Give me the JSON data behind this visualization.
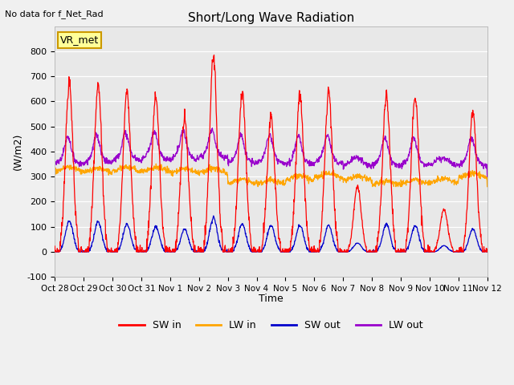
{
  "title": "Short/Long Wave Radiation",
  "ylabel": "(W/m2)",
  "xlabel": "Time",
  "top_left_text": "No data for f_Net_Rad",
  "box_label": "VR_met",
  "ylim": [
    -100,
    900
  ],
  "yticks": [
    -100,
    0,
    100,
    200,
    300,
    400,
    500,
    600,
    700,
    800
  ],
  "background_color": "#f0f0f0",
  "plot_bg_color": "#e8e8e8",
  "grid_color": "#ffffff",
  "line_colors": {
    "SW_in": "#ff0000",
    "LW_in": "#ffa500",
    "SW_out": "#0000cc",
    "LW_out": "#9900cc"
  },
  "legend_labels": [
    "SW in",
    "LW in",
    "SW out",
    "LW out"
  ],
  "num_days": 15,
  "tick_labels": [
    "Oct 28",
    "Oct 29",
    "Oct 30",
    "Oct 31",
    "Nov 1",
    "Nov 2",
    "Nov 3",
    "Nov 4",
    "Nov 5",
    "Nov 6",
    "Nov 7",
    "Nov 8",
    "Nov 9",
    "Nov 10",
    "Nov 11",
    "Nov 12"
  ],
  "sw_peaks": [
    670,
    665,
    640,
    620,
    530,
    775,
    635,
    540,
    630,
    630,
    260,
    625,
    620,
    170,
    560
  ],
  "sw_out_peaks": [
    125,
    120,
    110,
    100,
    90,
    135,
    110,
    105,
    105,
    105,
    35,
    110,
    105,
    25,
    90
  ],
  "lw_in_base": [
    330,
    325,
    330,
    330,
    325,
    325,
    280,
    280,
    295,
    305,
    295,
    275,
    280,
    285,
    305
  ],
  "lw_out_base": [
    365,
    370,
    380,
    385,
    385,
    390,
    370,
    370,
    365,
    370,
    360,
    360,
    360,
    360,
    360
  ]
}
